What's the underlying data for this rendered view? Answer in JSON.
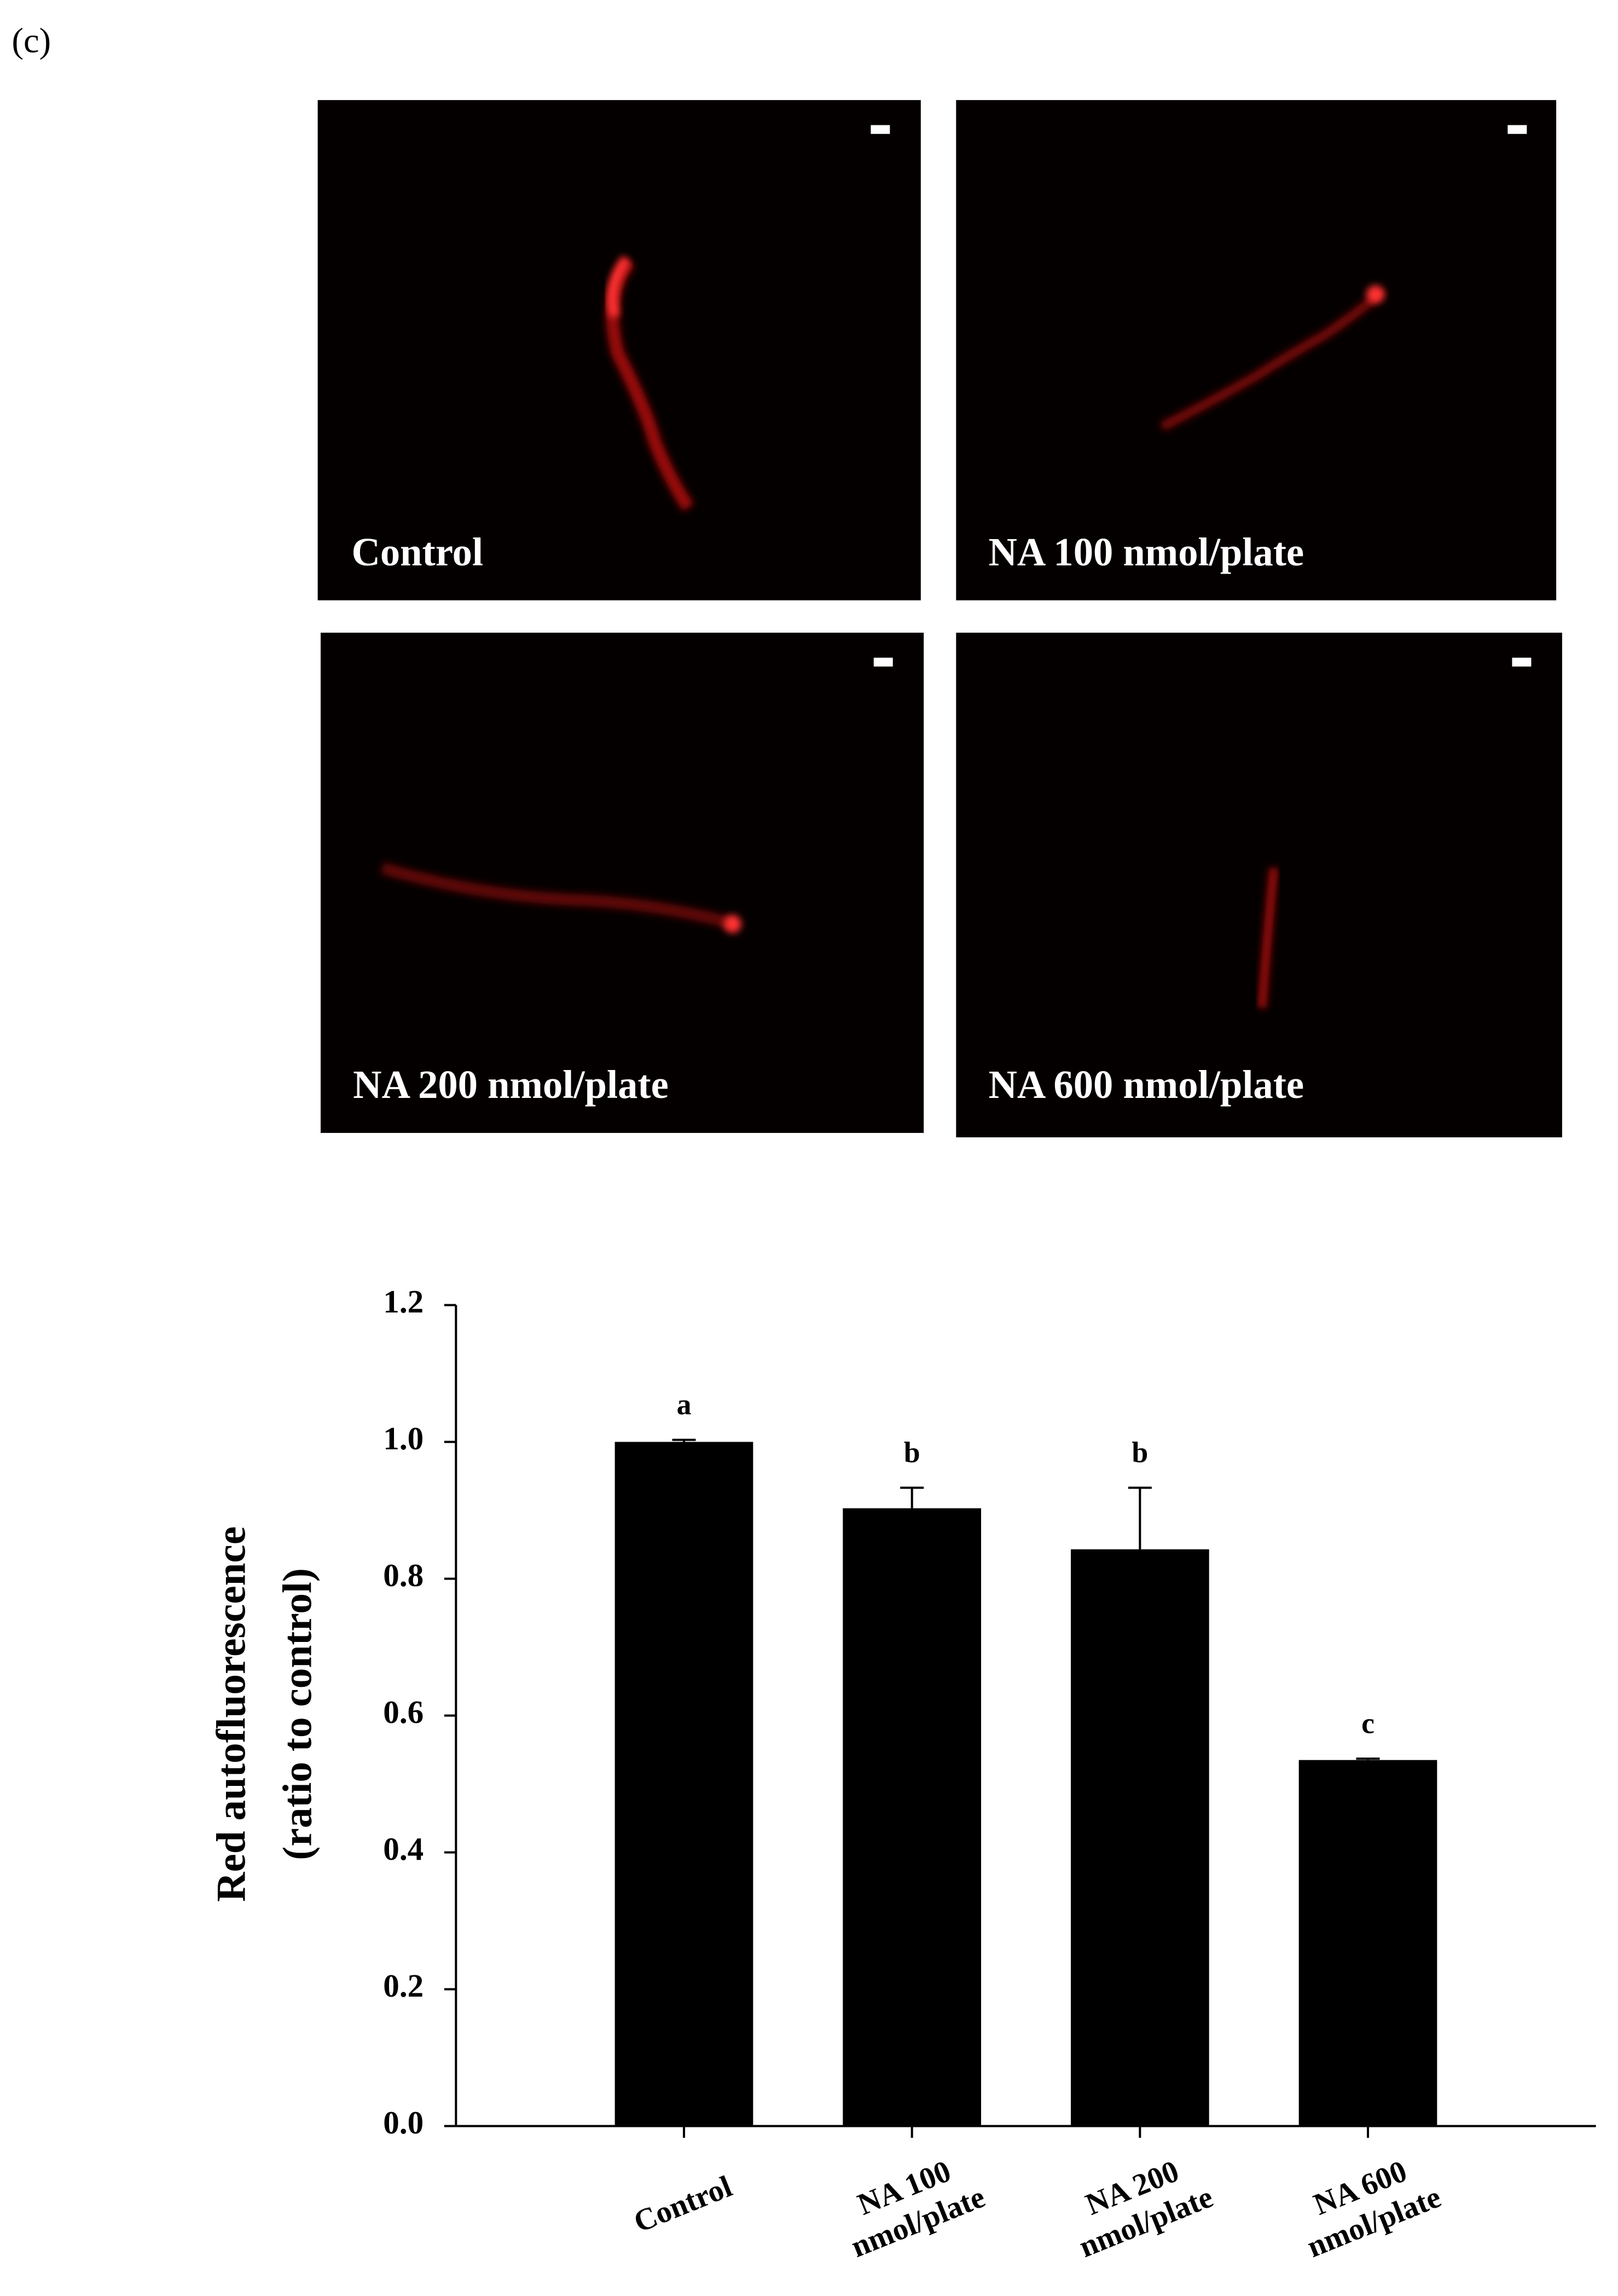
{
  "panel_label": "(c)",
  "micrographs": [
    {
      "label": "Control"
    },
    {
      "label": "NA 100 nmol/plate"
    },
    {
      "label": "NA 200 nmol/plate"
    },
    {
      "label": "NA 600 nmol/plate"
    }
  ],
  "chart_data": {
    "type": "bar",
    "y_label": [
      "Red autofluorescence",
      "(ratio to control)"
    ],
    "categories": [
      "Control",
      "NA 100 nmol/plate",
      "NA 200 nmol/plate",
      "NA 600 nmol/plate"
    ],
    "values": [
      1.0,
      0.903,
      0.843,
      0.535
    ],
    "errors": [
      0.003,
      0.03,
      0.09,
      0.002
    ],
    "annotations": [
      "a",
      "b",
      "b",
      "c"
    ],
    "color": "#000000",
    "ylim": [
      0,
      1.2
    ],
    "yticks": [
      {
        "value": 0,
        "label": "0.0"
      },
      {
        "value": 0.2,
        "label": "0.2"
      },
      {
        "value": 0.4,
        "label": "0.4"
      },
      {
        "value": 0.6,
        "label": "0.6"
      },
      {
        "value": 0.8,
        "label": "0.8"
      },
      {
        "value": 1,
        "label": "1.0"
      },
      {
        "value": 1.2,
        "label": "1.2"
      }
    ]
  }
}
